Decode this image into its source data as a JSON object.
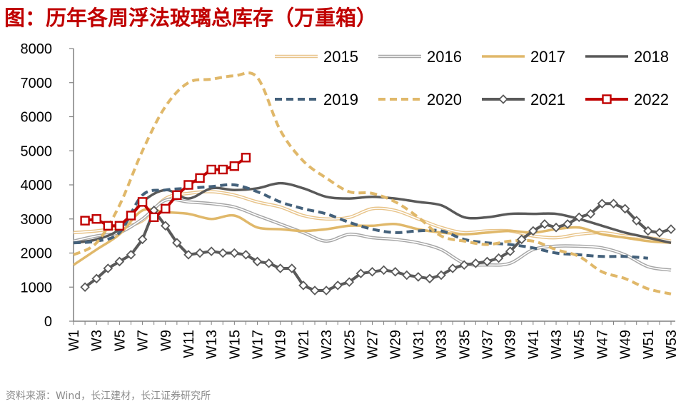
{
  "title": "图：历年各周浮法玻璃总库存（万重箱）",
  "source": "资料来源：Wind，长江建材，长江证券研究所",
  "chart_data": {
    "type": "line",
    "title": "图：历年各周浮法玻璃总库存（万重箱）",
    "xlabel": "",
    "ylabel": "",
    "ylim": [
      0,
      8000
    ],
    "yticks": [
      0,
      1000,
      2000,
      3000,
      4000,
      5000,
      6000,
      7000,
      8000
    ],
    "xlim": [
      1,
      53
    ],
    "xticks": [
      "W1",
      "W3",
      "W5",
      "W7",
      "W9",
      "W11",
      "W13",
      "W15",
      "W17",
      "W19",
      "W21",
      "W23",
      "W25",
      "W27",
      "W29",
      "W31",
      "W33",
      "W35",
      "W37",
      "W39",
      "W41",
      "W43",
      "W45",
      "W47",
      "W49",
      "W51",
      "W53"
    ],
    "grid": false,
    "legend": "top-right",
    "series": [
      {
        "name": "2015",
        "color": "#e8c48a",
        "style": "double",
        "x": [
          1,
          3,
          5,
          7,
          9,
          11,
          13,
          15,
          17,
          19,
          21,
          23,
          25,
          27,
          29,
          31,
          33,
          35,
          37,
          39,
          41,
          43,
          45,
          47,
          49,
          51,
          53
        ],
        "values": [
          2600,
          2650,
          2750,
          2950,
          3600,
          3750,
          3800,
          3700,
          3500,
          3350,
          3100,
          3000,
          3050,
          3300,
          3250,
          3000,
          2750,
          2600,
          2650,
          2650,
          2500,
          2450,
          2550,
          2600,
          2500,
          2450,
          2350
        ]
      },
      {
        "name": "2016",
        "color": "#a6a6a6",
        "style": "double",
        "x": [
          1,
          3,
          5,
          7,
          9,
          11,
          13,
          15,
          17,
          19,
          21,
          23,
          25,
          27,
          29,
          31,
          33,
          35,
          37,
          39,
          41,
          43,
          45,
          47,
          49,
          51,
          53
        ],
        "values": [
          2350,
          2500,
          2600,
          3000,
          3550,
          3500,
          3450,
          3350,
          3100,
          2850,
          2600,
          2350,
          2550,
          2450,
          2400,
          2300,
          2100,
          1700,
          1650,
          1700,
          2100,
          2200,
          2200,
          2150,
          1950,
          1600,
          1500
        ]
      },
      {
        "name": "2017",
        "color": "#e0b86a",
        "style": "solid",
        "x": [
          1,
          3,
          5,
          7,
          9,
          11,
          13,
          15,
          17,
          19,
          21,
          23,
          25,
          27,
          29,
          31,
          33,
          35,
          37,
          39,
          41,
          43,
          45,
          47,
          49,
          51,
          53
        ],
        "values": [
          1650,
          2100,
          2550,
          3250,
          3200,
          3150,
          3000,
          3100,
          2750,
          2700,
          2650,
          2700,
          2800,
          2800,
          2850,
          2700,
          2600,
          2550,
          2600,
          2650,
          2600,
          2700,
          2750,
          2550,
          2450,
          2350,
          2300
        ]
      },
      {
        "name": "2018",
        "color": "#595959",
        "style": "solid",
        "x": [
          1,
          3,
          5,
          7,
          9,
          11,
          13,
          15,
          17,
          19,
          21,
          23,
          25,
          27,
          29,
          31,
          33,
          35,
          37,
          39,
          41,
          43,
          45,
          47,
          49,
          51,
          53
        ],
        "values": [
          2300,
          2400,
          2700,
          3500,
          3850,
          3600,
          3900,
          3850,
          3900,
          4050,
          3900,
          3650,
          3600,
          3650,
          3600,
          3500,
          3400,
          3050,
          3050,
          3150,
          3150,
          3150,
          3000,
          2800,
          2600,
          2450,
          2300
        ]
      },
      {
        "name": "2019",
        "color": "#44617b",
        "style": "dashed",
        "x": [
          1,
          3,
          5,
          7,
          9,
          11,
          13,
          15,
          17,
          19,
          21,
          23,
          25,
          27,
          29,
          31,
          33,
          35,
          37,
          39,
          41,
          43,
          45,
          47,
          49,
          51
        ],
        "values": [
          2300,
          2350,
          2600,
          3700,
          3850,
          3900,
          3950,
          4000,
          3800,
          3500,
          3300,
          3150,
          2900,
          2700,
          2600,
          2650,
          2650,
          2400,
          2300,
          2250,
          2150,
          2000,
          1950,
          1900,
          1900,
          1850
        ]
      },
      {
        "name": "2020",
        "color": "#e0b86a",
        "style": "dashed",
        "x": [
          1,
          3,
          5,
          7,
          9,
          11,
          13,
          15,
          17,
          19,
          21,
          23,
          25,
          27,
          29,
          31,
          33,
          35,
          37,
          39,
          41,
          43,
          45,
          47,
          49,
          51,
          53
        ],
        "values": [
          1950,
          2300,
          3400,
          5000,
          6300,
          7000,
          7100,
          7200,
          7150,
          5600,
          4700,
          4200,
          3800,
          3750,
          3500,
          3050,
          2500,
          2350,
          2250,
          2350,
          2350,
          2100,
          1900,
          1450,
          1250,
          950,
          800
        ]
      },
      {
        "name": "2021",
        "color": "#595959",
        "style": "solid-diamond",
        "x": [
          2,
          3,
          4,
          5,
          6,
          7,
          8,
          9,
          10,
          11,
          12,
          13,
          14,
          15,
          16,
          17,
          18,
          19,
          20,
          21,
          22,
          23,
          24,
          25,
          26,
          27,
          28,
          29,
          30,
          31,
          32,
          33,
          34,
          35,
          36,
          37,
          38,
          39,
          40,
          41,
          42,
          43,
          44,
          45,
          46,
          47,
          48,
          49,
          50,
          51,
          52,
          53
        ],
        "values": [
          1000,
          1250,
          1550,
          1750,
          1950,
          2400,
          3250,
          2800,
          2300,
          1950,
          2000,
          2050,
          2000,
          2000,
          1950,
          1750,
          1700,
          1550,
          1550,
          1050,
          900,
          900,
          1050,
          1150,
          1400,
          1450,
          1500,
          1450,
          1350,
          1300,
          1250,
          1350,
          1550,
          1650,
          1700,
          1750,
          1850,
          2050,
          2400,
          2650,
          2850,
          2750,
          2850,
          3050,
          3150,
          3450,
          3450,
          3300,
          2950,
          2650,
          2600,
          2700
        ]
      },
      {
        "name": "2022",
        "color": "#c00000",
        "style": "solid-square",
        "x": [
          2,
          3,
          4,
          5,
          6,
          7,
          8,
          9,
          10,
          11,
          12,
          13,
          14,
          15,
          16
        ],
        "values": [
          2950,
          3000,
          2800,
          2800,
          3100,
          3500,
          3050,
          3300,
          3700,
          4000,
          4200,
          4450,
          4450,
          4550,
          4800
        ]
      }
    ]
  }
}
